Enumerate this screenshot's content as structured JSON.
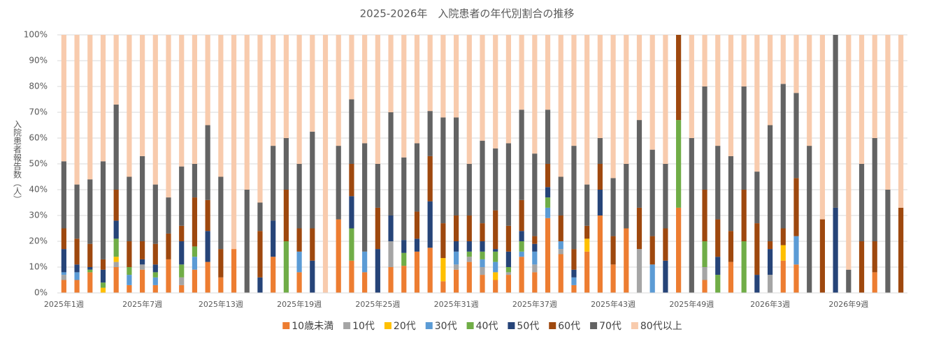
{
  "chart_data": {
    "type": "stacked_bar",
    "title": "2025-2026年　入院患者の年代別割合の推移",
    "y_label": "入院患者報告数（人）",
    "categories": [
      "2025年1週",
      null,
      null,
      null,
      null,
      null,
      "2025年7週",
      null,
      null,
      null,
      null,
      null,
      "2025年13週",
      null,
      null,
      null,
      null,
      null,
      "2025年19週",
      null,
      null,
      null,
      null,
      null,
      "2025年25週",
      null,
      null,
      null,
      null,
      null,
      "2025年31週",
      null,
      null,
      null,
      null,
      null,
      "2025年37週",
      null,
      null,
      null,
      null,
      null,
      "2025年43週",
      null,
      null,
      null,
      null,
      null,
      "2025年49週",
      null,
      null,
      null,
      null,
      null,
      "2026年3週",
      null,
      null,
      null,
      null,
      null,
      "2026年9週",
      null,
      null,
      null,
      null
    ],
    "ylim": [
      0,
      100
    ],
    "yticks": [
      {
        "value": 0,
        "label": "0%"
      },
      {
        "value": 10,
        "label": "10%"
      },
      {
        "value": 20,
        "label": "20%"
      },
      {
        "value": 30,
        "label": "30%"
      },
      {
        "value": 40,
        "label": "40%"
      },
      {
        "value": 50,
        "label": "50%"
      },
      {
        "value": 60,
        "label": "60%"
      },
      {
        "value": 70,
        "label": "70%"
      },
      {
        "value": 80,
        "label": "80%"
      },
      {
        "value": 90,
        "label": "90%"
      },
      {
        "value": 100,
        "label": "100%"
      }
    ],
    "grid": true,
    "legend": "bottom",
    "series": [
      {
        "name": "10歳未満",
        "color": "#ED7D31",
        "values": [
          5,
          5,
          8,
          0,
          10,
          3,
          9,
          3,
          13,
          3,
          9,
          12,
          6,
          17,
          0,
          0,
          14,
          0,
          8,
          0,
          0,
          28.5,
          12.5,
          8,
          0,
          10,
          10.5,
          16,
          17.5,
          4.5,
          9,
          12,
          7,
          5,
          7,
          14,
          8,
          29,
          15,
          3,
          16,
          30,
          11,
          25,
          0,
          0,
          0,
          33,
          0,
          5,
          0,
          12,
          0,
          0,
          0,
          12.5,
          11,
          0,
          0,
          0,
          0,
          0,
          8,
          0,
          0
        ]
      },
      {
        "name": "10代",
        "color": "#A5A5A5",
        "values": [
          2,
          0,
          0,
          0,
          2,
          0,
          2,
          0,
          0,
          3,
          0,
          0,
          0,
          0,
          0,
          0,
          0,
          0,
          0,
          0,
          0,
          0,
          0,
          0,
          0,
          10,
          0,
          0,
          0,
          0,
          2,
          2,
          3,
          0,
          1,
          0,
          3,
          0,
          2,
          0,
          0,
          0,
          0,
          0,
          17,
          0,
          0,
          0,
          0,
          5,
          0,
          0,
          0,
          0,
          7,
          0,
          0,
          0,
          0,
          0,
          0,
          0,
          0,
          0,
          0
        ]
      },
      {
        "name": "20代",
        "color": "#FFC000",
        "values": [
          0,
          0,
          0,
          2,
          2,
          0,
          0,
          0,
          0,
          0,
          0,
          0,
          0,
          0,
          0,
          0,
          0,
          0,
          0,
          0,
          0,
          0,
          0,
          0,
          0,
          0,
          0,
          0,
          0,
          9,
          0,
          0,
          0,
          3,
          0,
          0,
          0,
          0,
          0,
          0,
          5,
          0,
          0,
          0,
          0,
          0,
          0,
          0,
          0,
          0,
          0,
          0,
          0,
          0,
          0,
          6,
          0,
          0,
          0,
          0,
          0,
          0,
          0,
          0,
          0
        ]
      },
      {
        "name": "30代",
        "color": "#5B9BD5",
        "values": [
          1,
          3,
          0,
          0,
          0,
          4,
          0,
          3,
          0,
          0,
          5,
          0,
          0,
          0,
          0,
          0,
          0,
          0,
          8,
          0,
          0,
          0,
          0,
          8,
          0,
          0,
          0,
          0,
          0,
          0,
          5,
          0,
          3,
          4,
          0,
          2,
          5,
          4,
          3,
          3,
          0,
          0,
          0,
          0,
          0,
          11,
          0,
          0,
          0,
          0,
          0,
          0,
          0,
          0,
          0,
          0,
          11,
          0,
          0,
          0,
          0,
          0,
          0,
          0,
          0
        ]
      },
      {
        "name": "40代",
        "color": "#70AD47",
        "values": [
          0,
          0,
          1,
          2,
          7,
          3,
          0,
          2,
          0,
          5,
          4,
          0,
          0,
          0,
          0,
          0,
          0,
          20,
          0,
          0,
          0,
          0,
          12.5,
          0,
          0,
          0,
          5,
          0,
          0,
          0,
          0,
          2,
          3,
          4,
          2,
          4,
          0,
          4,
          0,
          0,
          0,
          0,
          0,
          0,
          0,
          0,
          0,
          34,
          0,
          10,
          7,
          0,
          20,
          0,
          0,
          0,
          0,
          0,
          0,
          0,
          0,
          0,
          0,
          0,
          0
        ]
      },
      {
        "name": "50代",
        "color": "#264478",
        "values": [
          9,
          3,
          1,
          5,
          7,
          0,
          2,
          3,
          0,
          9,
          0,
          12,
          0,
          0,
          0,
          6,
          14,
          0,
          0,
          12.5,
          0,
          0,
          12.5,
          0,
          17,
          10,
          5,
          5,
          18,
          0,
          4,
          4,
          4,
          1,
          6,
          4,
          3,
          4,
          0,
          3,
          0,
          10,
          0,
          0,
          0,
          0,
          12.5,
          0,
          0,
          0,
          7,
          0,
          0,
          7,
          10,
          0,
          0,
          0,
          0,
          33,
          0,
          0,
          0,
          0,
          0
        ]
      },
      {
        "name": "60代",
        "color": "#9E480E",
        "values": [
          8,
          10,
          9,
          4,
          12,
          10,
          7,
          8,
          10,
          6,
          19,
          12,
          11,
          0,
          0,
          18,
          0,
          20,
          9,
          12.5,
          0,
          0,
          12.5,
          0,
          16,
          0,
          0,
          10.5,
          17.5,
          13.5,
          10,
          10,
          7,
          15,
          10,
          12,
          3,
          9,
          10,
          8,
          5,
          10,
          11,
          0,
          16,
          11,
          12.5,
          33,
          0,
          20,
          14.5,
          12,
          20,
          20,
          3,
          6.5,
          22.5,
          0,
          28.5,
          0,
          0,
          20,
          12,
          0,
          33
        ]
      },
      {
        "name": "70代",
        "color": "#636363",
        "values": [
          26,
          21,
          25,
          38,
          33,
          25,
          33,
          23,
          14,
          23,
          13,
          29,
          28,
          0,
          40,
          11,
          29,
          20,
          25,
          37.5,
          0,
          28.5,
          25,
          42,
          17,
          40,
          32,
          26.5,
          17.5,
          41,
          38,
          20,
          32,
          24,
          32,
          35,
          32,
          21,
          15,
          40,
          16,
          10,
          22.5,
          25,
          34,
          33.5,
          25,
          0,
          60,
          40,
          28.5,
          29,
          40,
          20,
          45,
          56,
          33,
          57,
          0,
          67,
          9,
          30,
          40,
          40,
          0
        ]
      },
      {
        "name": "80代以上",
        "color": "#F8CBAD",
        "values": [
          49,
          58,
          56,
          49,
          27,
          55,
          47,
          58,
          63,
          51,
          50,
          35,
          55,
          83,
          60,
          65,
          43,
          40,
          50,
          37.5,
          100,
          43,
          25,
          42,
          50,
          30,
          47.5,
          42,
          29.5,
          32,
          32,
          50,
          41,
          44,
          42,
          29,
          46,
          29,
          55,
          43,
          58,
          40,
          55.5,
          50,
          33,
          44.5,
          50,
          0,
          40,
          20,
          43,
          47,
          20,
          53,
          35,
          19,
          22.5,
          43,
          71.5,
          0,
          91,
          50,
          40,
          60,
          67
        ]
      }
    ]
  }
}
